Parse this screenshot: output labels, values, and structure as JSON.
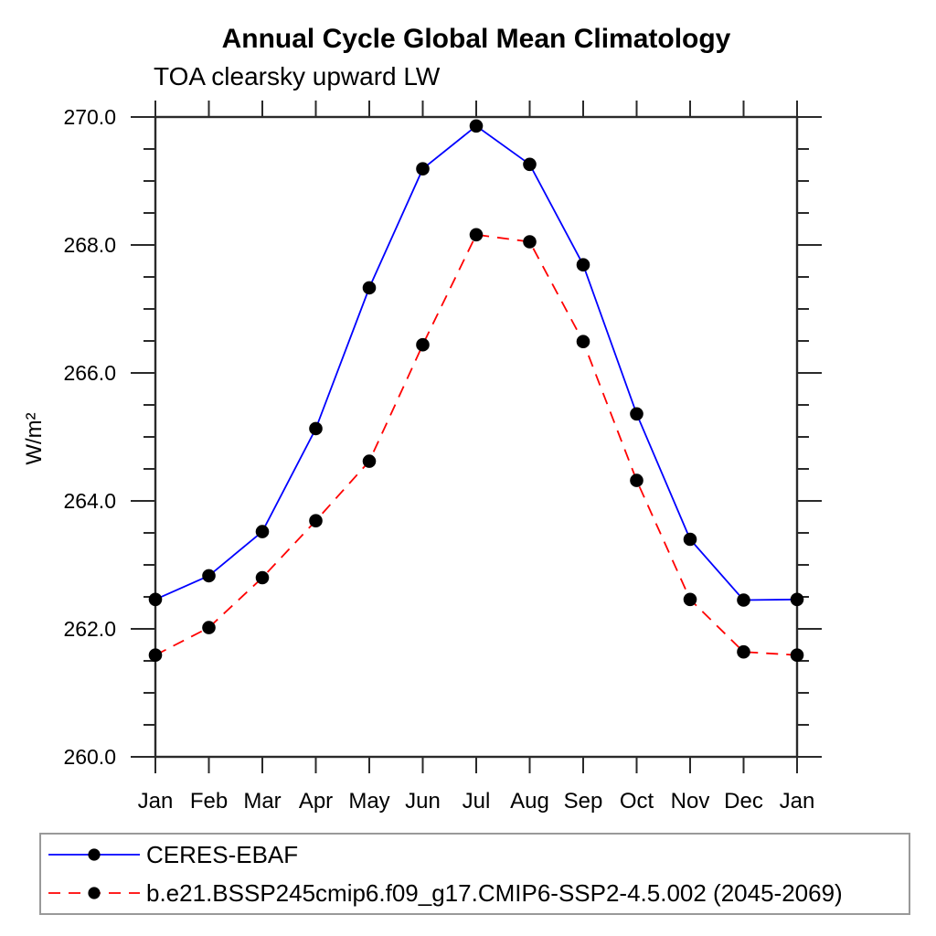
{
  "chart_data": {
    "type": "line",
    "title": "Annual Cycle Global Mean Climatology",
    "subtitle": "TOA clearsky upward LW",
    "ylabel": "W/m²",
    "xlabel": "",
    "categories": [
      "Jan",
      "Feb",
      "Mar",
      "Apr",
      "May",
      "Jun",
      "Jul",
      "Aug",
      "Sep",
      "Oct",
      "Nov",
      "Dec",
      "Jan"
    ],
    "ylim": [
      260.0,
      270.0
    ],
    "ytick_major_interval": 2.0,
    "ytick_minor_interval": 0.5,
    "ytick_values": [
      260,
      262,
      264,
      266,
      268,
      270
    ],
    "ytick_labels": [
      "260.0",
      "262.0",
      "264.0",
      "266.0",
      "268.0",
      "270.0"
    ],
    "grid": false,
    "frame_ticks": "all-four-sides-outward",
    "legend_position": "bottom-left-box",
    "marker": "filled-circle",
    "marker_color": "#000000",
    "series": [
      {
        "name": "CERES-EBAF",
        "color": "#0000ff",
        "style": "solid",
        "values": [
          262.46,
          262.83,
          263.52,
          265.13,
          267.33,
          269.19,
          269.86,
          269.26,
          267.69,
          265.36,
          263.4,
          262.45,
          262.46
        ]
      },
      {
        "name": "b.e21.BSSP245cmip6.f09_g17.CMIP6-SSP2-4.5.002 (2045-2069)",
        "color": "#ff0000",
        "style": "dashed",
        "values": [
          261.59,
          262.02,
          262.8,
          263.69,
          264.62,
          266.44,
          268.16,
          268.05,
          266.49,
          264.32,
          262.46,
          261.64,
          261.59
        ]
      }
    ]
  }
}
